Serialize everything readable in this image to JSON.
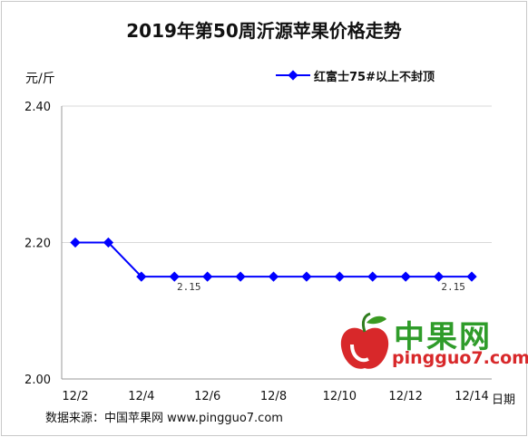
{
  "chart_data": {
    "type": "line",
    "title": "2019年第50周沂源苹果价格走势",
    "ylabel": "元/斤",
    "xlabel": "日期",
    "ylim": [
      2.0,
      2.4
    ],
    "y_ticks": [
      "2.00",
      "2.20",
      "2.40"
    ],
    "x_tick_labels": [
      "12/2",
      "12/4",
      "12/6",
      "12/8",
      "12/10",
      "12/12",
      "12/14"
    ],
    "grid": "horizontal",
    "legend_position": "top-right",
    "series": [
      {
        "name": "红富士75#以上不封顶",
        "color": "#0000ff",
        "x": [
          "12/2",
          "12/3",
          "12/4",
          "12/5",
          "12/6",
          "12/7",
          "12/8",
          "12/9",
          "12/10",
          "12/11",
          "12/12",
          "12/13",
          "12/14"
        ],
        "values": [
          2.2,
          2.2,
          2.15,
          2.15,
          2.15,
          2.15,
          2.15,
          2.15,
          2.15,
          2.15,
          2.15,
          2.15,
          2.15
        ]
      }
    ],
    "data_labels": [
      {
        "x": "12/5",
        "text": "2.15"
      },
      {
        "x": "12/13",
        "text": "2.15"
      }
    ]
  },
  "footer": "数据来源：中国苹果网 www.pingguo7.com",
  "watermark": {
    "name": "中果网",
    "url": "pingguo7.com"
  }
}
